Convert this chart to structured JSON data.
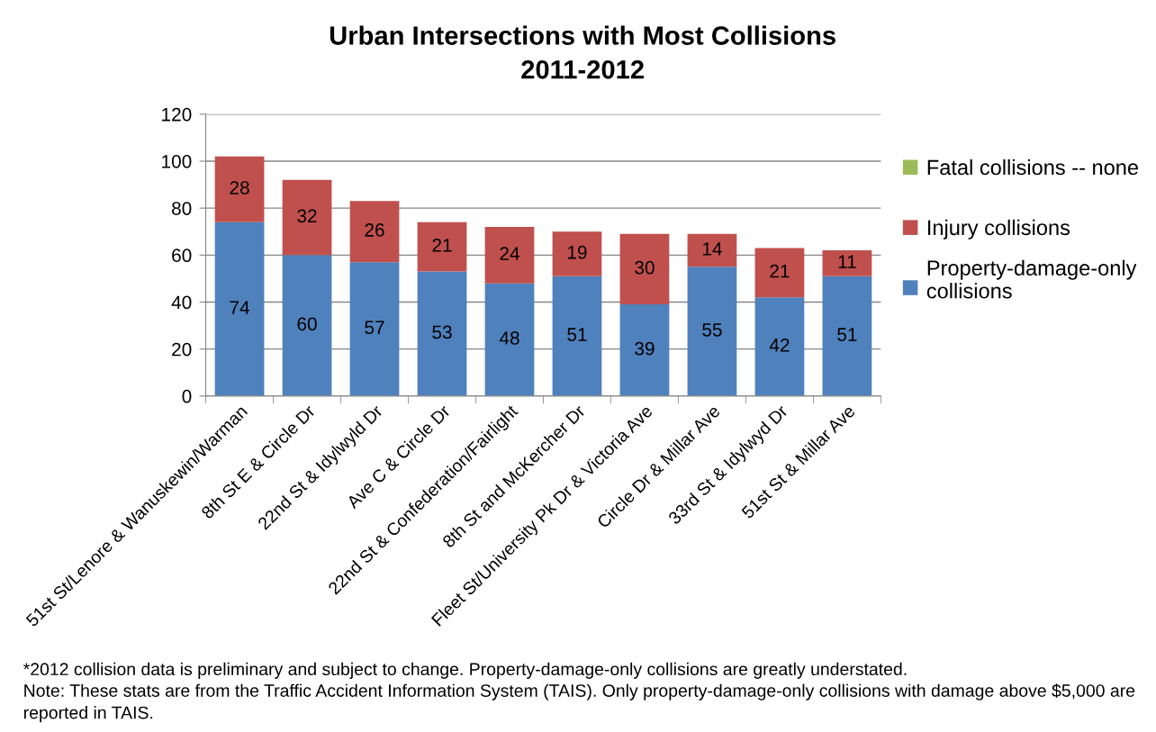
{
  "chart_data": {
    "type": "bar",
    "title": "Urban Intersections with Most Collisions\n2011-2012",
    "categories": [
      "51st St/Lenore & Wanuskewin/Warman",
      "8th St E & Circle Dr",
      "22nd St & Idylwyld Dr",
      "Ave C & Circle Dr",
      "22nd St & Confederation/Fairlight",
      "8th St and McKercher Dr",
      "Fleet St/University Pk Dr & Victoria Ave",
      "Circle Dr & Millar Ave",
      "33rd St & Idylwyd Dr",
      "51st St & Millar Ave"
    ],
    "stacked": true,
    "ylim": [
      0,
      120
    ],
    "yticks": [
      0,
      20,
      40,
      60,
      80,
      100,
      120
    ],
    "grid": "y",
    "legend": "right",
    "series": [
      {
        "name": "Property-damage-only collisions",
        "color": "#4f81bd",
        "values": [
          74,
          60,
          57,
          53,
          48,
          51,
          39,
          55,
          42,
          51
        ],
        "value_labels": [
          "74",
          "60",
          "57",
          "53",
          "48",
          "51",
          "39",
          "55",
          "42",
          "51"
        ]
      },
      {
        "name": "Injury collisions",
        "color": "#c0504d",
        "values": [
          28,
          32,
          26,
          21,
          24,
          19,
          30,
          14,
          21,
          11
        ],
        "value_labels": [
          "28",
          "32",
          "26",
          "21",
          "24",
          "19",
          "30",
          "14",
          "21",
          "11"
        ]
      },
      {
        "name": "Fatal collisions -- none",
        "color": "#9bbb59",
        "values": [
          0,
          0,
          0,
          0,
          0,
          0,
          0,
          0,
          0,
          0
        ]
      }
    ],
    "annotations": [
      "*2012 collision data is preliminary and subject to change. Property-damage-only collisions are greatly understated.",
      "Note: These stats are from the Traffic Accident Information System (TAIS). Only property-damage-only collisions with damage above $5,000 are reported in TAIS."
    ]
  }
}
